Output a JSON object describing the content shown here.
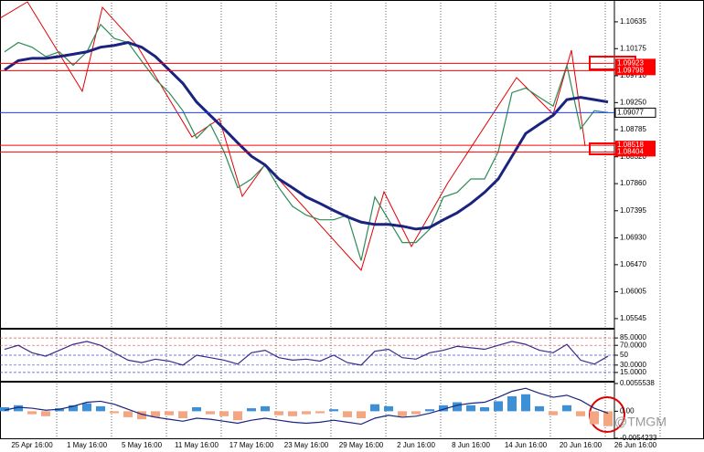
{
  "chart_data": [
    {
      "type": "line",
      "categories": [
        null,
        null,
        "25 Apr 16:00",
        null,
        null,
        null,
        "1 May 16:00",
        null,
        null,
        null,
        "5 May 16:00",
        null,
        null,
        null,
        "11 May 16:00",
        null,
        null,
        null,
        "17 May 16:00",
        null,
        null,
        null,
        "23 May 16:00",
        null,
        null,
        null,
        "29 May 16:00",
        null,
        null,
        null,
        "2 Jun 16:00",
        null,
        null,
        null,
        "8 Jun 16:00",
        null,
        null,
        null,
        "14 Jun 16:00",
        null,
        null,
        null,
        "20 Jun 16:00",
        null,
        null,
        null,
        "26 Jun 16:00"
      ],
      "series": [
        {
          "color": "#2e8b57",
          "values": [
            1.1012,
            1.1028,
            1.102,
            1.1004,
            1.1012,
            1.0989,
            1.1012,
            1.1059,
            1.1035,
            1.1028,
            1.0996,
            1.0965,
            1.0942,
            1.0911,
            1.0864,
            1.0888,
            1.0841,
            1.0779,
            1.0794,
            1.0818,
            1.0779,
            1.0747,
            1.0732,
            1.0724,
            1.0724,
            1.0732,
            1.0654,
            1.0763,
            1.0724,
            1.0685,
            1.0685,
            1.0708,
            1.0763,
            1.0771,
            1.0794,
            1.0794,
            1.0841,
            1.0942,
            1.095,
            1.0934,
            1.0919,
            1.0989,
            1.088,
            1.0911,
            1.0908,
            null,
            null
          ]
        },
        {
          "color": "#1a237e",
          "values": [
            1.0981,
            1.0997,
            1.1001,
            1.1001,
            1.1004,
            1.1008,
            1.1012,
            1.102,
            1.1023,
            1.1028,
            1.102,
            1.1004,
            1.0981,
            1.0958,
            1.0926,
            1.0903,
            1.088,
            1.0856,
            1.0833,
            1.0818,
            1.0794,
            1.0779,
            1.0763,
            1.0752,
            1.074,
            1.0729,
            1.072,
            1.0716,
            1.0716,
            1.0713,
            1.0708,
            1.0711,
            1.0724,
            1.0736,
            1.0752,
            1.0771,
            1.0794,
            1.0833,
            1.0872,
            1.0888,
            1.0903,
            1.093,
            1.0934,
            1.093,
            1.0926,
            null,
            null
          ]
        }
      ],
      "ylim": [
        1.05403,
        1.10978
      ],
      "yticks": [
        1.10635,
        1.10175,
        {
          "value": 1.0971,
          "label": "1.09710"
        },
        {
          "value": 1.0925,
          "label": "1.09250"
        },
        1.08785,
        {
          "value": 1.0832,
          "label": "1.08320"
        },
        {
          "value": 1.0786,
          "label": "1.07860"
        },
        1.07395,
        {
          "value": 1.0693,
          "label": "1.06930"
        },
        {
          "value": 1.0647,
          "label": "1.06470"
        },
        1.06005,
        1.05545
      ],
      "price_lines": [
        {
          "value": 1.09923,
          "color": "#ff0000"
        },
        {
          "value": 1.09798,
          "color": "#ff0000"
        },
        {
          "value": 1.09077,
          "color": "#1e3cff"
        },
        {
          "value": 1.08518,
          "color": "#ff0000"
        },
        {
          "value": 1.08404,
          "color": "#ff0000"
        }
      ]
    },
    {
      "type": "line",
      "series": [
        {
          "color": "#3a2a8c",
          "values": [
            62,
            70,
            55,
            48,
            60,
            72,
            78,
            70,
            55,
            40,
            35,
            42,
            38,
            30,
            50,
            45,
            40,
            32,
            55,
            60,
            45,
            40,
            42,
            38,
            50,
            35,
            30,
            58,
            62,
            45,
            42,
            55,
            60,
            68,
            65,
            62,
            70,
            78,
            72,
            60,
            55,
            72,
            40,
            32,
            48,
            null,
            null
          ]
        }
      ],
      "ylim": [
        0,
        100
      ],
      "yticks": [
        {
          "value": 85,
          "label": "85.0000"
        },
        {
          "value": 70,
          "label": "70.0000"
        },
        50,
        {
          "value": 30,
          "label": "30.0000"
        },
        {
          "value": 15,
          "label": "15.0000"
        }
      ],
      "grid": true
    },
    {
      "type": "bar",
      "values": [
        0.0008,
        0.0012,
        -0.0006,
        -0.001,
        0.0006,
        0.0012,
        0.0016,
        0.001,
        -0.0004,
        -0.0012,
        -0.0016,
        -0.0012,
        -0.0008,
        -0.0014,
        0.0008,
        -0.0006,
        -0.001,
        -0.0018,
        0.0006,
        0.001,
        -0.0008,
        -0.001,
        -0.0006,
        -0.0004,
        0.0004,
        -0.0012,
        -0.0014,
        0.0014,
        0.001,
        -0.001,
        -0.0006,
        0.0004,
        0.0012,
        0.0018,
        0.0012,
        0.0008,
        0.002,
        0.003,
        0.0034,
        0.001,
        -0.0008,
        0.0012,
        -0.001,
        -0.0026,
        -0.003,
        null,
        null
      ],
      "color_positive": "#3d8fd6",
      "color_negative": "#f4a582",
      "series": [
        {
          "color": "#1a237e",
          "values": [
            0.0002,
            0.0008,
            0.0006,
            0.0002,
            0.0004,
            0.001,
            0.0018,
            0.002,
            0.0014,
            0.0004,
            -0.0006,
            -0.0012,
            -0.0016,
            -0.002,
            -0.0014,
            -0.0016,
            -0.002,
            -0.0024,
            -0.0018,
            -0.0014,
            -0.0018,
            -0.0022,
            -0.0024,
            -0.0022,
            -0.0018,
            -0.0022,
            -0.0026,
            -0.0014,
            -0.0008,
            -0.0012,
            -0.001,
            -0.0004,
            0.0004,
            0.0012,
            0.0016,
            0.0018,
            0.0028,
            0.004,
            0.0046,
            0.0036,
            0.0028,
            0.0032,
            0.0022,
            0.0006,
            -0.0004,
            null,
            null
          ]
        }
      ],
      "ylim": [
        -0.0054233,
        0.0055538
      ],
      "yticks": [
        0.0055538,
        {
          "value": 0,
          "label": "0.00"
        },
        -0.0054233
      ],
      "watermark": "@TMGM"
    }
  ]
}
